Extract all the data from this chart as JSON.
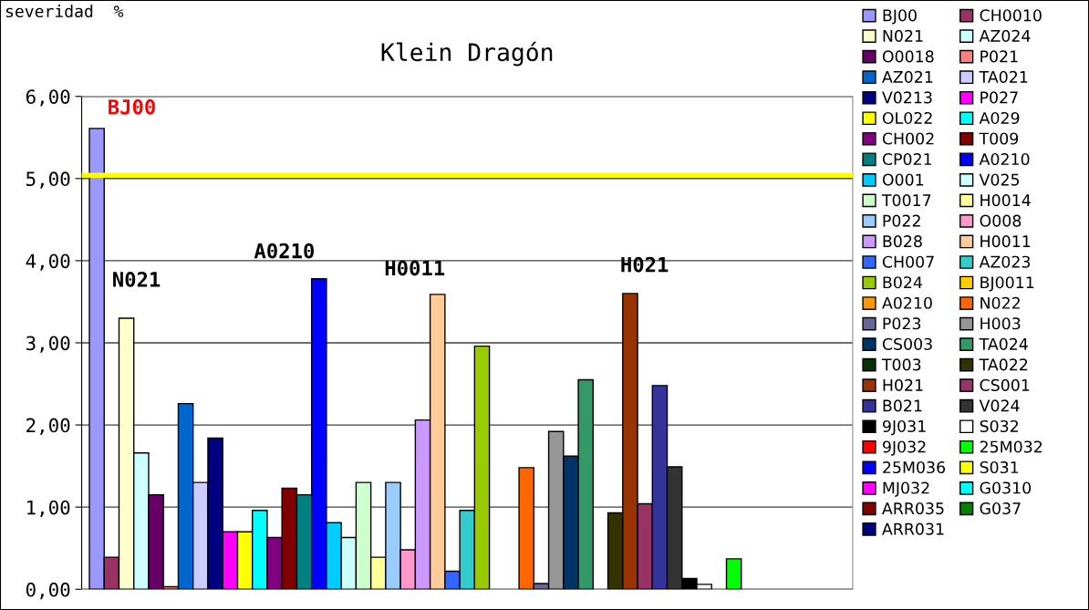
{
  "chart_data": {
    "type": "bar",
    "title": "Klein Dragón",
    "ylabel": "severidad  %",
    "categories": [
      null
    ],
    "ylim": [
      0,
      6
    ],
    "yticks": [
      {
        "value": 0,
        "label": "0,00"
      },
      {
        "value": 1,
        "label": "1,00"
      },
      {
        "value": 2,
        "label": "2,00"
      },
      {
        "value": 3,
        "label": "3,00"
      },
      {
        "value": 4,
        "label": "4,00"
      },
      {
        "value": 5,
        "label": "5,00"
      },
      {
        "value": 6,
        "label": "6,00"
      }
    ],
    "grid": "y",
    "legend": "right",
    "tick_labels": "y",
    "ref_lines": [
      {
        "axis": "y",
        "value": 5.04,
        "color": "#ffff00"
      }
    ],
    "annotations": [
      "BJ00",
      "N021",
      "A0210",
      "H0011",
      "H021"
    ],
    "series": [
      {
        "name": "BJ00",
        "color": "#9999ff",
        "values": [
          5.61
        ]
      },
      {
        "name": "CH0010",
        "color": "#993366",
        "values": [
          0.39
        ]
      },
      {
        "name": "N021",
        "color": "#ffffcc",
        "values": [
          3.3
        ]
      },
      {
        "name": "AZ024",
        "color": "#ccffff",
        "values": [
          1.66
        ]
      },
      {
        "name": "O0018",
        "color": "#660066",
        "values": [
          1.15
        ]
      },
      {
        "name": "P021",
        "color": "#ff8080",
        "values": [
          0.03
        ]
      },
      {
        "name": "AZ021",
        "color": "#0066cc",
        "values": [
          2.26
        ]
      },
      {
        "name": "TA021",
        "color": "#ccccff",
        "values": [
          1.3
        ]
      },
      {
        "name": "V0213",
        "color": "#000080",
        "values": [
          1.84
        ]
      },
      {
        "name": "P027",
        "color": "#ff00ff",
        "values": [
          0.7
        ]
      },
      {
        "name": "OL022",
        "color": "#ffff00",
        "values": [
          0.7
        ]
      },
      {
        "name": "A029",
        "color": "#00ffff",
        "values": [
          0.96
        ]
      },
      {
        "name": "CH002",
        "color": "#800080",
        "values": [
          0.63
        ]
      },
      {
        "name": "T009",
        "color": "#800000",
        "values": [
          1.23
        ]
      },
      {
        "name": "CP021",
        "color": "#008080",
        "values": [
          1.15
        ]
      },
      {
        "name": "A0210",
        "color": "#0000ff",
        "values": [
          3.78
        ]
      },
      {
        "name": "O001",
        "color": "#00ccff",
        "values": [
          0.81
        ]
      },
      {
        "name": "V025",
        "color": "#ccffff",
        "values": [
          0.63
        ]
      },
      {
        "name": "T0017",
        "color": "#ccffcc",
        "values": [
          1.3
        ]
      },
      {
        "name": "H0014",
        "color": "#ffff99",
        "values": [
          0.39
        ]
      },
      {
        "name": "P022",
        "color": "#99ccff",
        "values": [
          1.3
        ]
      },
      {
        "name": "O008",
        "color": "#ff99cc",
        "values": [
          0.48
        ]
      },
      {
        "name": "B028",
        "color": "#cc99ff",
        "values": [
          2.06
        ]
      },
      {
        "name": "H0011",
        "color": "#ffcc99",
        "values": [
          3.59
        ]
      },
      {
        "name": "CH007",
        "color": "#3366ff",
        "values": [
          0.22
        ]
      },
      {
        "name": "AZ023",
        "color": "#33cccc",
        "values": [
          0.96
        ]
      },
      {
        "name": "B024",
        "color": "#99cc00",
        "values": [
          2.96
        ]
      },
      {
        "name": "BJ0011",
        "color": "#ffcc00",
        "values": [
          null
        ]
      },
      {
        "name": "A0210",
        "color": "#ff9900",
        "values": [
          null
        ]
      },
      {
        "name": "N022",
        "color": "#ff6600",
        "values": [
          1.48
        ]
      },
      {
        "name": "P023",
        "color": "#666699",
        "values": [
          0.07
        ]
      },
      {
        "name": "H003",
        "color": "#969696",
        "values": [
          1.92
        ]
      },
      {
        "name": "CS003",
        "color": "#003366",
        "values": [
          1.62
        ]
      },
      {
        "name": "TA024",
        "color": "#339966",
        "values": [
          2.55
        ]
      },
      {
        "name": "T003",
        "color": "#003300",
        "values": [
          null
        ]
      },
      {
        "name": "TA022",
        "color": "#333300",
        "values": [
          0.93
        ]
      },
      {
        "name": "H021",
        "color": "#993300",
        "values": [
          3.6
        ]
      },
      {
        "name": "CS001",
        "color": "#993366",
        "values": [
          1.04
        ]
      },
      {
        "name": "B021",
        "color": "#333399",
        "values": [
          2.48
        ]
      },
      {
        "name": "V024",
        "color": "#333333",
        "values": [
          1.49
        ]
      },
      {
        "name": "9J031",
        "color": "#000000",
        "values": [
          0.13
        ]
      },
      {
        "name": "S032",
        "color": "#ffffff",
        "values": [
          0.06
        ]
      },
      {
        "name": "9J032",
        "color": "#ff0000",
        "values": [
          null
        ]
      },
      {
        "name": "25M032",
        "color": "#00ff00",
        "values": [
          0.37
        ]
      },
      {
        "name": "25M036",
        "color": "#0000ff",
        "values": [
          null
        ]
      },
      {
        "name": "S031",
        "color": "#ffff00",
        "values": [
          null
        ]
      },
      {
        "name": "MJ032",
        "color": "#ff00ff",
        "values": [
          null
        ]
      },
      {
        "name": "G0310",
        "color": "#00ffff",
        "values": [
          null
        ]
      },
      {
        "name": "ARR035",
        "color": "#800000",
        "values": [
          null
        ]
      },
      {
        "name": "G037",
        "color": "#008000",
        "values": [
          null
        ]
      },
      {
        "name": "ARR031",
        "color": "#000080",
        "values": [
          null
        ]
      }
    ]
  }
}
